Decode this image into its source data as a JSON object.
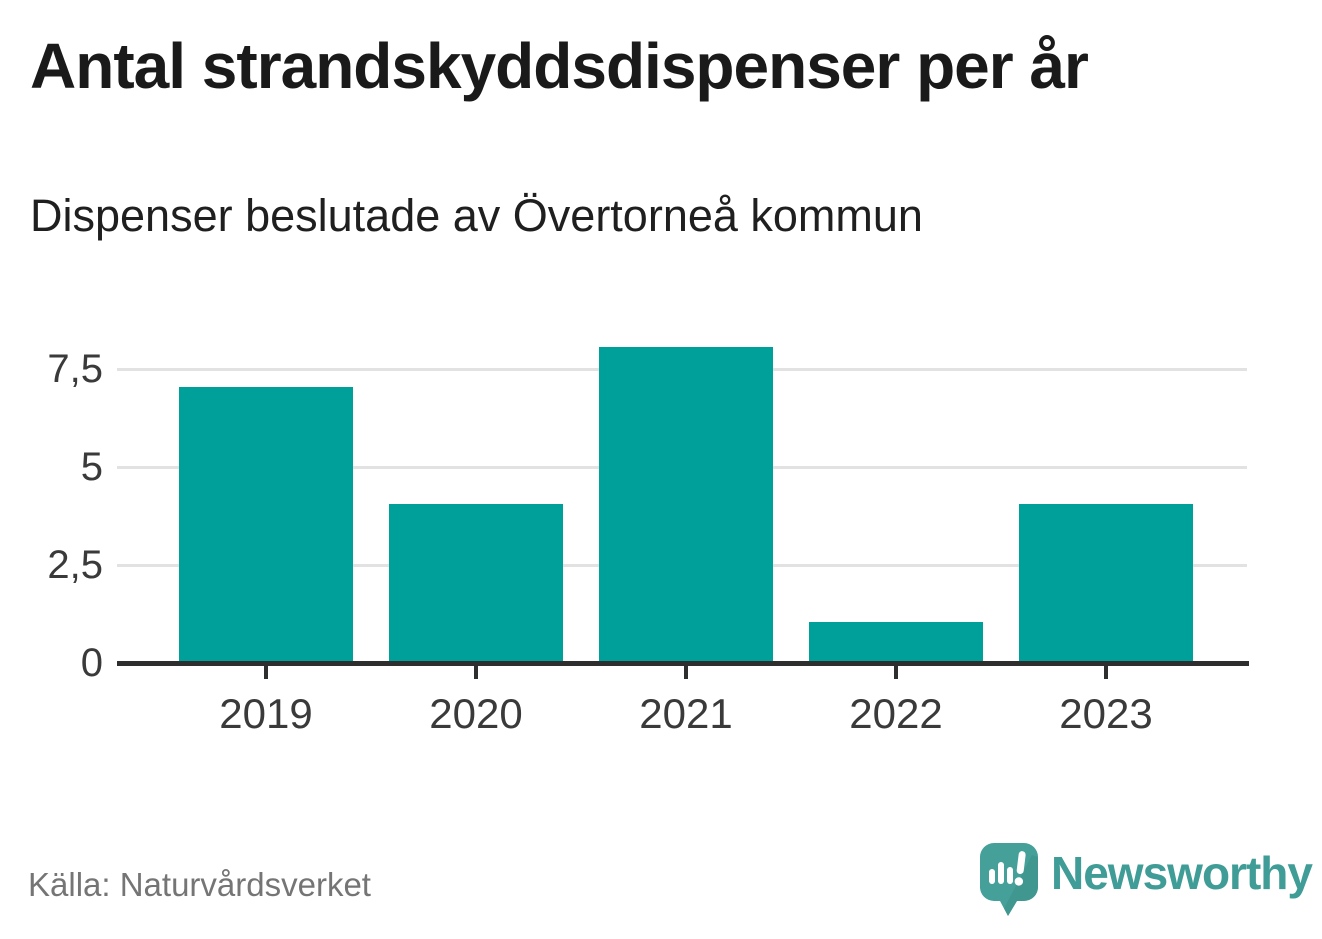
{
  "chart_data": {
    "type": "bar",
    "title": "Antal strandskyddsdispenser per år",
    "subtitle": "Dispenser beslutade av Övertorneå kommun",
    "categories": [
      "2019",
      "2020",
      "2021",
      "2022",
      "2023"
    ],
    "values": [
      7,
      4,
      8,
      1,
      4
    ],
    "xlabel": "",
    "ylabel": "",
    "ylim": [
      0,
      8
    ],
    "yticks": [
      0,
      2.5,
      5,
      7.5
    ],
    "ytick_labels": [
      "0",
      "2,5",
      "5",
      "7,5"
    ],
    "bar_color": "#00A09A",
    "gridline_color": "#e2e2e2",
    "axis_color": "#2e2e2e",
    "grid": "horizontal",
    "legend_position": "none"
  },
  "footer": {
    "source": "Källa: Naturvårdsverket",
    "brand": "Newsworthy",
    "brand_color": "#3F9C96"
  }
}
